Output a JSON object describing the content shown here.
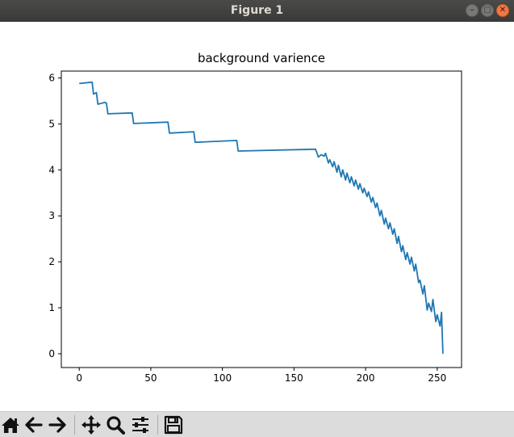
{
  "window": {
    "title": "Figure 1",
    "controls": [
      "minimize",
      "maximize",
      "close"
    ]
  },
  "chart_data": {
    "type": "line",
    "title": "background varience",
    "xlabel": "",
    "ylabel": "",
    "xlim": [
      -12.5,
      267
    ],
    "ylim": [
      -0.3,
      6.15
    ],
    "xticks": [
      0,
      50,
      100,
      150,
      200,
      250
    ],
    "yticks": [
      0,
      1,
      2,
      3,
      4,
      5,
      6
    ],
    "grid": false,
    "color": "#1f77b4",
    "x": [
      0,
      9,
      10,
      12,
      13,
      18,
      19,
      20,
      37,
      38,
      62,
      63,
      80,
      81,
      110,
      111,
      165,
      166,
      167,
      169,
      171,
      172,
      174,
      175,
      177,
      178,
      180,
      181,
      183,
      184,
      186,
      187,
      189,
      190,
      192,
      193,
      195,
      196,
      198,
      199,
      201,
      202,
      204,
      205,
      207,
      208,
      210,
      211,
      213,
      214,
      216,
      217,
      219,
      220,
      222,
      223,
      225,
      226,
      228,
      229,
      231,
      232,
      234,
      235,
      237,
      238,
      240,
      241,
      243,
      244,
      246,
      247,
      249,
      250,
      252,
      253,
      254
    ],
    "values": [
      5.88,
      5.91,
      5.65,
      5.68,
      5.43,
      5.47,
      5.45,
      5.22,
      5.24,
      5.01,
      5.04,
      4.8,
      4.83,
      4.6,
      4.64,
      4.41,
      4.45,
      4.37,
      4.28,
      4.33,
      4.3,
      4.36,
      4.15,
      4.22,
      4.07,
      4.18,
      3.95,
      4.1,
      3.85,
      4.0,
      3.78,
      3.93,
      3.72,
      3.85,
      3.65,
      3.78,
      3.58,
      3.7,
      3.5,
      3.6,
      3.42,
      3.52,
      3.3,
      3.4,
      3.18,
      3.28,
      3.0,
      3.12,
      2.82,
      2.95,
      2.72,
      2.85,
      2.6,
      2.72,
      2.4,
      2.55,
      2.22,
      2.35,
      2.05,
      2.2,
      1.95,
      2.1,
      1.8,
      1.95,
      1.55,
      1.6,
      1.3,
      1.48,
      0.95,
      1.1,
      0.92,
      1.18,
      0.7,
      0.85,
      0.6,
      0.9,
      0.0
    ]
  },
  "toolbar": {
    "buttons": [
      {
        "name": "home",
        "icon": "home-icon"
      },
      {
        "name": "back",
        "icon": "arrow-left-icon"
      },
      {
        "name": "forward",
        "icon": "arrow-right-icon"
      },
      {
        "name": "pan",
        "icon": "move-icon"
      },
      {
        "name": "zoom",
        "icon": "zoom-icon"
      },
      {
        "name": "configure-subplots",
        "icon": "sliders-icon"
      },
      {
        "name": "save",
        "icon": "save-icon"
      }
    ]
  }
}
